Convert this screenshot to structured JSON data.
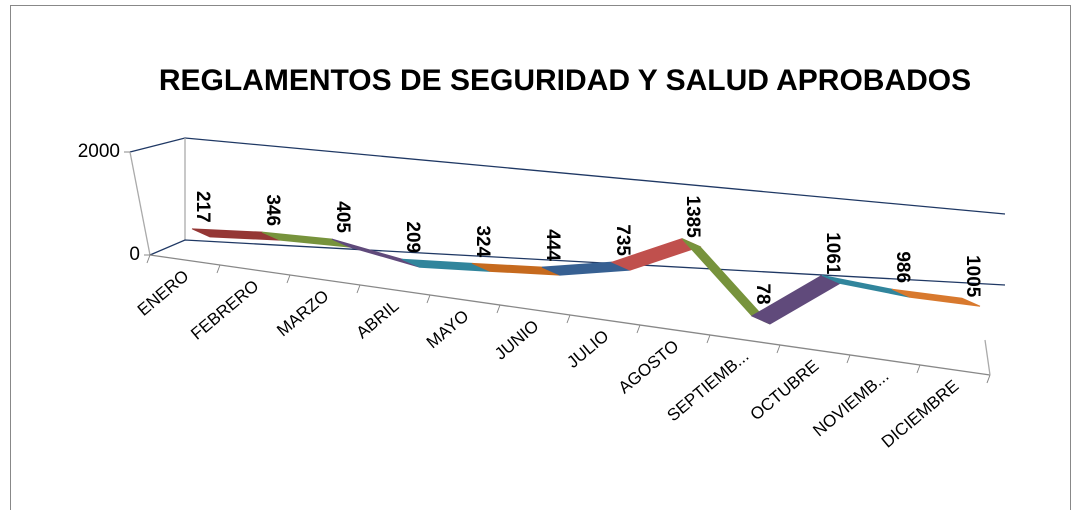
{
  "chart_data": {
    "type": "line3d",
    "title": "REGLAMENTOS DE SEGURIDAD Y SALUD APROBADOS",
    "categories": [
      "ENERO",
      "FEBRERO",
      "MARZO",
      "ABRIL",
      "MAYO",
      "JUNIO",
      "JULIO",
      "AGOSTO",
      "SEPTIEMB...",
      "OCTUBRE",
      "NOVIEMB...",
      "DICIEMBRE"
    ],
    "values": [
      217,
      346,
      405,
      209,
      324,
      444,
      735,
      1385,
      78,
      1061,
      986,
      1005
    ],
    "colors": [
      "#953735",
      "#77933c",
      "#604a7b",
      "#31859c",
      "#c66a1e",
      "#376092",
      "#c0504d",
      "#77933c",
      "#604a7b",
      "#31859c",
      "#d8792e"
    ],
    "ylim": [
      0,
      2000
    ],
    "yticks": [
      0,
      2000
    ]
  }
}
